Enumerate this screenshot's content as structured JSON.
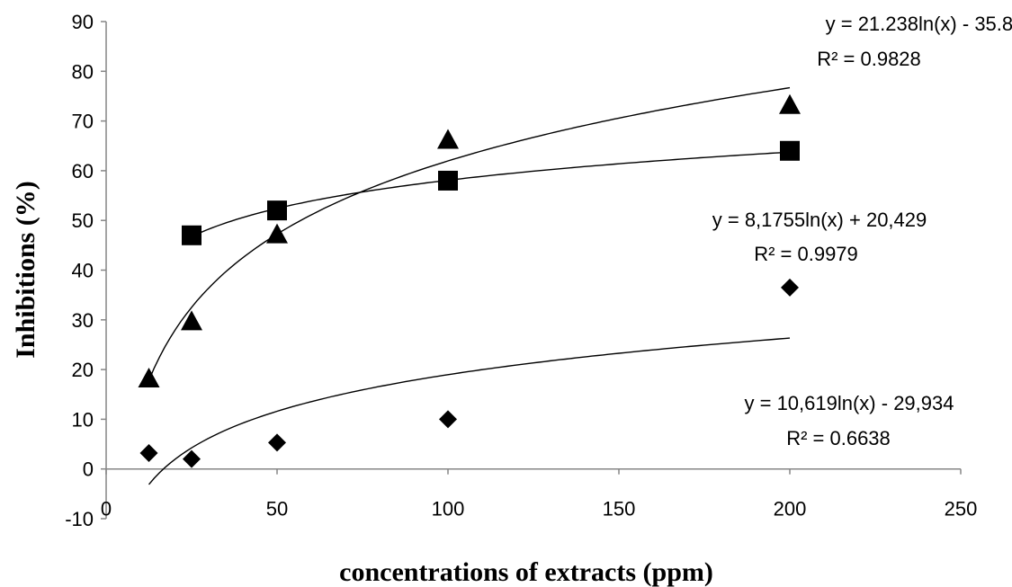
{
  "chart_data": {
    "type": "scatter",
    "title": "",
    "xlabel": "concentrations of extracts (ppm)",
    "ylabel": "Inhibitions (%)",
    "xlim": [
      0,
      250
    ],
    "ylim": [
      -10,
      90
    ],
    "x_ticks": [
      "0",
      "50",
      "100",
      "150",
      "200",
      "250"
    ],
    "y_ticks": [
      "-10",
      "0",
      "10",
      "20",
      "30",
      "40",
      "50",
      "60",
      "70",
      "80",
      "90"
    ],
    "grid": false,
    "legend": "none",
    "series": [
      {
        "marker": "triangle",
        "x": [
          12.5,
          25,
          50,
          100,
          200
        ],
        "y": [
          18,
          29.5,
          47,
          66,
          73
        ],
        "trend": {
          "a": 21.238,
          "b": -35.84,
          "x_range": [
            12.5,
            200
          ]
        },
        "equation": "y = 21.238ln(x) - 35.84",
        "r2": "R² = 0.9828"
      },
      {
        "marker": "square",
        "x": [
          25,
          50,
          100,
          200
        ],
        "y": [
          47,
          52,
          58,
          64
        ],
        "trend": {
          "a": 8.1755,
          "b": 20.429,
          "x_range": [
            25,
            200
          ]
        },
        "equation": "y = 8,1755ln(x) + 20,429",
        "r2": "R² = 0.9979"
      },
      {
        "marker": "diamond",
        "x": [
          12.5,
          25,
          50,
          100,
          200
        ],
        "y": [
          3.2,
          2,
          5.3,
          10,
          36.5
        ],
        "trend": {
          "a": 10.619,
          "b": -29.934,
          "x_range": [
            12.5,
            200
          ]
        },
        "equation": "y = 10,619ln(x) - 29,934",
        "r2": "R² = 0.6638"
      }
    ]
  }
}
